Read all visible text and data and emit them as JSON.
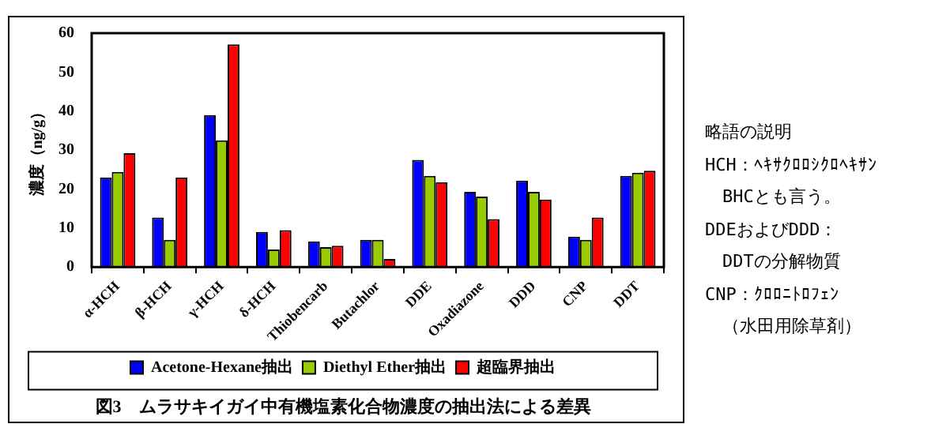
{
  "chart_data": {
    "type": "bar",
    "title": "図3　ムラサキイガイ中有機塩素化合物濃度の抽出法による差異",
    "ylabel": "濃度（ng/g）",
    "categories": [
      "α-HCH",
      "β-HCH",
      "γ-HCH",
      "δ-HCH",
      "Thiobencarb",
      "Butachlor",
      "DDE",
      "Oxadiazone",
      "DDD",
      "CNP",
      "DDT"
    ],
    "series": [
      {
        "name": "Acetone-Hexane抽出",
        "color": "#0000ff",
        "values": [
          23.0,
          12.7,
          39.0,
          9.0,
          6.6,
          7.0,
          27.5,
          19.3,
          22.2,
          7.8,
          23.4
        ]
      },
      {
        "name": "Diethyl Ether抽出",
        "color": "#99cc00",
        "values": [
          24.4,
          7.0,
          32.5,
          4.5,
          5.1,
          7.0,
          23.4,
          18.1,
          19.3,
          7.0,
          24.2
        ]
      },
      {
        "name": "超臨界抽出",
        "color": "#ff0000",
        "values": [
          29.2,
          23.0,
          57.1,
          9.5,
          5.5,
          2.1,
          21.8,
          12.3,
          17.3,
          12.7,
          24.7
        ]
      }
    ],
    "ylim": [
      0,
      60
    ],
    "yticks": [
      0,
      10,
      20,
      30,
      40,
      50,
      60
    ],
    "grid": false,
    "legend": "bottom",
    "annotations": [
      "略語の説明",
      "HCH：ﾍｷｻｸﾛﾛｼｸﾛﾍｷｻﾝ",
      "　BHCとも言う。",
      "DDEおよびDDD：",
      "　DDTの分解物質",
      "CNP：ｸﾛﾛﾆﾄﾛﾌｪﾝ",
      "　（水田用除草剤）"
    ]
  }
}
